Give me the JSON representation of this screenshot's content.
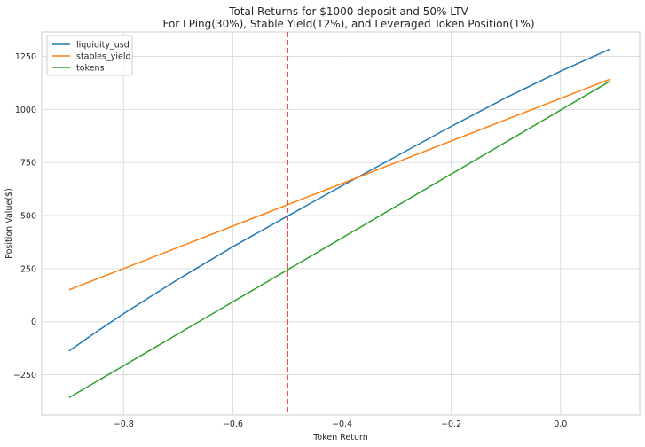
{
  "chart_data": {
    "type": "line",
    "title": "Total Returns for $1000 deposit and 50% LTV",
    "subtitle": "For LPing(30%), Stable Yield(12%), and Leveraged Token Position(1%)",
    "xlabel": "Token Return",
    "ylabel": "Position Value($)",
    "xlim": [
      -0.95,
      0.145
    ],
    "ylim": [
      -440,
      1365
    ],
    "xticks": [
      -0.8,
      -0.6,
      -0.4,
      -0.2,
      0.0
    ],
    "xtick_labels": [
      "−0.8",
      "−0.6",
      "−0.4",
      "−0.2",
      "0.0"
    ],
    "yticks": [
      -250,
      0,
      250,
      500,
      750,
      1000,
      1250
    ],
    "ytick_labels": [
      "−250",
      "0",
      "250",
      "500",
      "750",
      "1000",
      "1250"
    ],
    "grid": true,
    "legend_position": "top-left",
    "series": [
      {
        "name": "liquidity_usd",
        "color": "#1f77b4",
        "x": [
          -0.9,
          -0.85,
          -0.8,
          -0.7,
          -0.6,
          -0.5,
          -0.4,
          -0.3,
          -0.2,
          -0.1,
          0.0,
          0.09
        ],
        "y": [
          -138,
          -48,
          38,
          200,
          353,
          497,
          640,
          780,
          920,
          1055,
          1180,
          1284
        ]
      },
      {
        "name": "stables_yield",
        "color": "#ff7f0e",
        "x": [
          -0.9,
          0.09
        ],
        "y": [
          150,
          1142
        ]
      },
      {
        "name": "tokens",
        "color": "#2ca02c",
        "x": [
          -0.9,
          0.09
        ],
        "y": [
          -358,
          1132
        ]
      }
    ],
    "annotations": [
      {
        "type": "vline",
        "x": -0.5,
        "color": "#ff0000",
        "style": "dashed"
      }
    ]
  }
}
